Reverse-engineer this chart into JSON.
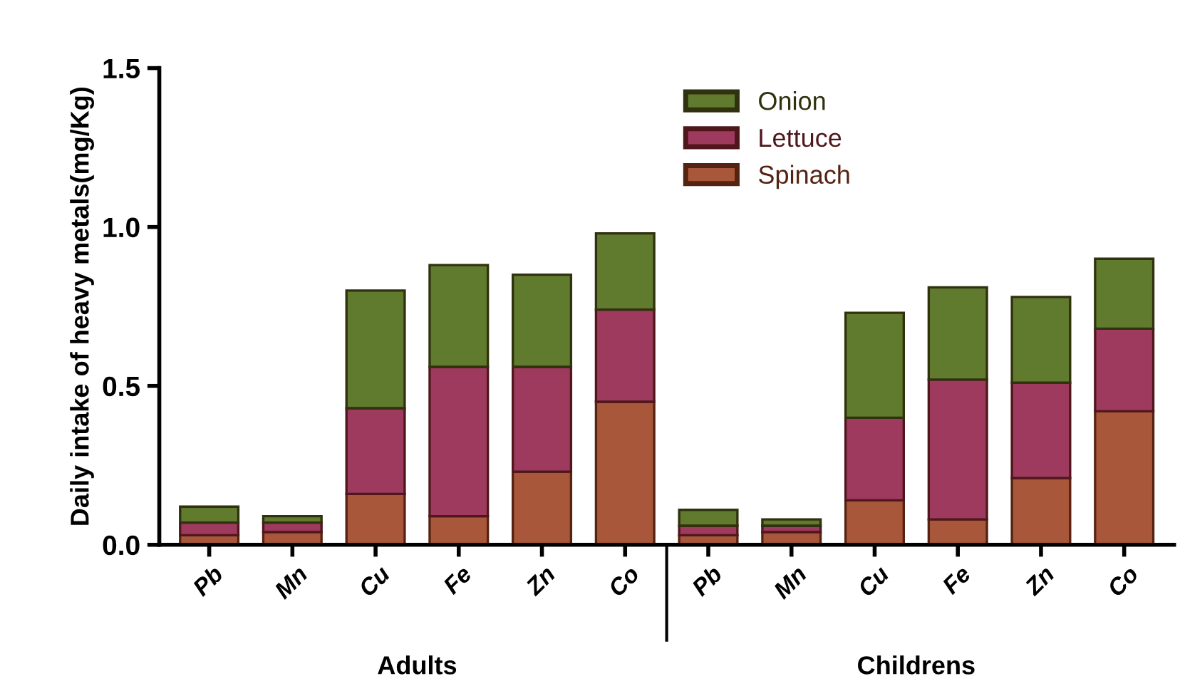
{
  "chart_data": {
    "type": "bar",
    "stacked": true,
    "ylabel": "Daily intake of heavy metals(mg/Kg)",
    "categories": [
      "Pb",
      "Mn",
      "Cu",
      "Fe",
      "Zn",
      "Co",
      "Pb",
      "Mn",
      "Cu",
      "Fe",
      "Zn",
      "Co"
    ],
    "series": [
      {
        "name": "Spinach",
        "color": "#a9573b",
        "values": [
          0.03,
          0.04,
          0.16,
          0.09,
          0.23,
          0.45,
          0.03,
          0.04,
          0.14,
          0.08,
          0.21,
          0.42
        ]
      },
      {
        "name": "Lettuce",
        "color": "#9e3a5e",
        "values": [
          0.04,
          0.03,
          0.27,
          0.47,
          0.33,
          0.29,
          0.03,
          0.02,
          0.26,
          0.44,
          0.3,
          0.26
        ]
      },
      {
        "name": "Onion",
        "color": "#607b2e",
        "values": [
          0.05,
          0.02,
          0.37,
          0.32,
          0.29,
          0.24,
          0.05,
          0.02,
          0.33,
          0.29,
          0.27,
          0.22
        ]
      }
    ],
    "ylim": [
      0,
      1.5
    ],
    "yticks": [
      {
        "value": 0,
        "label": "0.0"
      },
      0.5,
      {
        "value": 1,
        "label": "1.0"
      },
      1.5
    ],
    "annotations": [
      "Adults",
      "Childrens"
    ],
    "legend": "top",
    "grid": false
  }
}
